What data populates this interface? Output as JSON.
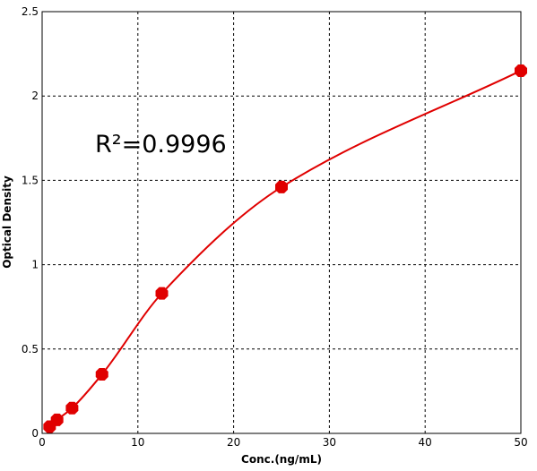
{
  "chart_data": {
    "type": "line",
    "x": [
      0.78,
      1.56,
      3.125,
      6.25,
      12.5,
      25,
      50
    ],
    "values": [
      0.04,
      0.08,
      0.15,
      0.35,
      0.83,
      1.46,
      2.15
    ],
    "color": "#e00000",
    "xlim": [
      0,
      50
    ],
    "xticks": [
      0,
      10,
      20,
      30,
      40,
      50
    ],
    "ylim": [
      0,
      2.5
    ],
    "yticks": [
      0,
      0.5,
      1,
      1.5,
      2,
      2.5
    ],
    "grid": true,
    "x_label": "Conc.(ng/mL)",
    "y_label": "Optical Density",
    "annotation": "R²=0.9996"
  }
}
